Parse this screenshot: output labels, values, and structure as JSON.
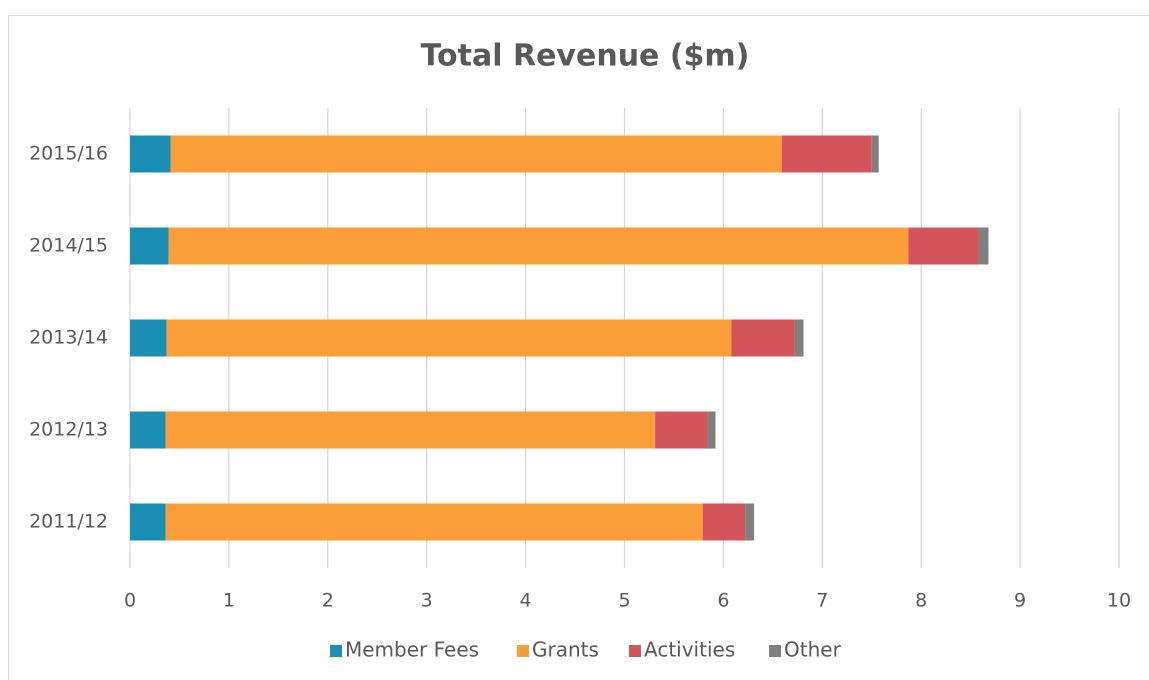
{
  "chart_data": {
    "type": "stacked-barh",
    "title": "Total Revenue ($m)",
    "categories": [
      "2011/12",
      "2012/13",
      "2013/14",
      "2014/15",
      "2015/16"
    ],
    "series": [
      {
        "name": "Member Fees",
        "color": "#1a8fb3",
        "values": [
          0.36,
          0.36,
          0.37,
          0.39,
          0.41
        ]
      },
      {
        "name": "Grants",
        "color": "#fb9e3a",
        "values": [
          5.43,
          4.95,
          5.71,
          7.48,
          6.18
        ]
      },
      {
        "name": "Activities",
        "color": "#d45559",
        "values": [
          0.43,
          0.53,
          0.64,
          0.71,
          0.91
        ]
      },
      {
        "name": "Other",
        "color": "#7f7f7f",
        "values": [
          0.09,
          0.08,
          0.09,
          0.1,
          0.07
        ]
      }
    ],
    "xlim": [
      0,
      10
    ],
    "xticks": [
      0,
      1,
      2,
      3,
      4,
      5,
      6,
      7,
      8,
      9,
      10
    ],
    "grid": true,
    "legend": "bottom"
  }
}
